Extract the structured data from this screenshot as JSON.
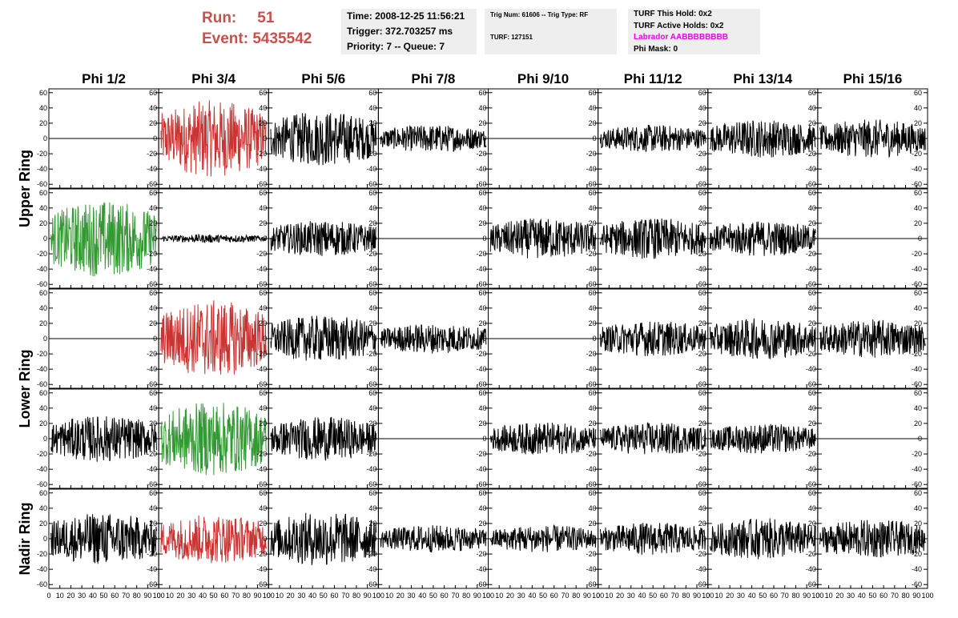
{
  "header": {
    "run_label": "Run:",
    "run_value": "51",
    "event_label": "Event:",
    "event_value": "5435542"
  },
  "info_time": {
    "time": "Time: 2008-12-25 11:56:21",
    "trigger": "Trigger: 372.703257 ms",
    "priority": "Priority: 7 -- Queue: 7"
  },
  "info_trig": {
    "trig": "Trig Num: 61606 -- Trig Type: RF",
    "turf": "TURF: 127151"
  },
  "info_turf": {
    "this_hold": "TURF This Hold: 0x2",
    "active_holds": "TURF Active Holds: 0x2",
    "labrador": "Labrador AABBBBBBBB",
    "phi_mask": "Phi Mask: 0",
    "labrador_color": "#ee00ee"
  },
  "colors": {
    "run_text": "#c9504b",
    "panel_bg": "#eeeeee",
    "trace_black": "#000000",
    "trace_red": "#cc3333",
    "trace_green": "#339933"
  },
  "chart_data": {
    "type": "line",
    "columns": [
      "Phi 1/2",
      "Phi 3/4",
      "Phi 5/6",
      "Phi 7/8",
      "Phi 9/10",
      "Phi 11/12",
      "Phi 13/14",
      "Phi 15/16"
    ],
    "ring_labels": [
      {
        "label": "Upper Ring",
        "rows": [
          0,
          1
        ]
      },
      {
        "label": "Lower Ring",
        "rows": [
          2,
          3
        ]
      },
      {
        "label": "Nadir Ring",
        "rows": [
          4
        ]
      }
    ],
    "xlim": [
      0,
      100
    ],
    "ylim": [
      -65,
      65
    ],
    "x_ticks": [
      0,
      10,
      20,
      30,
      40,
      50,
      60,
      70,
      80,
      90,
      100
    ],
    "x_tick_labels": [
      "0",
      "10",
      "20",
      "30",
      "40",
      "50",
      "60",
      "70",
      "80",
      "90",
      "100"
    ],
    "y_ticks": [
      -60,
      -40,
      -20,
      0,
      20,
      40,
      60
    ],
    "y_tick_labels": [
      "-60",
      "-40",
      "-20",
      "0",
      "20",
      "40",
      "60"
    ],
    "grid": false,
    "panels": [
      [
        {
          "color": "flat"
        },
        {
          "color": "red",
          "amp": 28
        },
        {
          "color": "black",
          "amp": 20
        },
        {
          "color": "black",
          "amp": 10
        },
        {
          "color": "flat"
        },
        {
          "color": "black",
          "amp": 10
        },
        {
          "color": "black",
          "amp": 14
        },
        {
          "color": "black",
          "amp": 14
        }
      ],
      [
        {
          "color": "green",
          "amp": 28
        },
        {
          "color": "black",
          "amp": 3
        },
        {
          "color": "black",
          "amp": 13
        },
        {
          "color": "flat"
        },
        {
          "color": "black",
          "amp": 15
        },
        {
          "color": "black",
          "amp": 15
        },
        {
          "color": "black",
          "amp": 13
        },
        {
          "color": "flat"
        }
      ],
      [
        {
          "color": "flat"
        },
        {
          "color": "red",
          "amp": 28
        },
        {
          "color": "black",
          "amp": 17
        },
        {
          "color": "black",
          "amp": 11
        },
        {
          "color": "flat"
        },
        {
          "color": "black",
          "amp": 13
        },
        {
          "color": "black",
          "amp": 15
        },
        {
          "color": "black",
          "amp": 14
        }
      ],
      [
        {
          "color": "black",
          "amp": 17
        },
        {
          "color": "green",
          "amp": 27
        },
        {
          "color": "black",
          "amp": 16
        },
        {
          "color": "flat"
        },
        {
          "color": "black",
          "amp": 12
        },
        {
          "color": "black",
          "amp": 12
        },
        {
          "color": "black",
          "amp": 11
        },
        {
          "color": "flat"
        }
      ],
      [
        {
          "color": "black",
          "amp": 19
        },
        {
          "color": "red",
          "amp": 18
        },
        {
          "color": "black",
          "amp": 20
        },
        {
          "color": "black",
          "amp": 10
        },
        {
          "color": "black",
          "amp": 10
        },
        {
          "color": "black",
          "amp": 12
        },
        {
          "color": "black",
          "amp": 15
        },
        {
          "color": "black",
          "amp": 14
        }
      ]
    ]
  }
}
